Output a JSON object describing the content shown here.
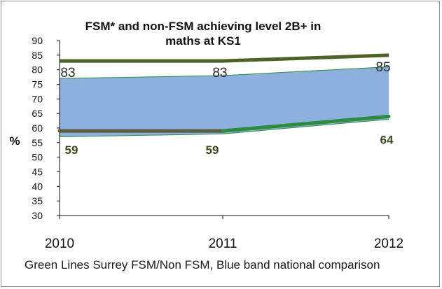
{
  "chart_data": {
    "type": "line",
    "title_lines": [
      "FSM* and non-FSM achieving level 2B+ in",
      "maths at KS1"
    ],
    "ylabel": "%",
    "xlabel": "",
    "categories": [
      "2010",
      "2011",
      "2012"
    ],
    "ylim": [
      30,
      90
    ],
    "yticks": [
      30,
      35,
      40,
      45,
      50,
      55,
      60,
      65,
      70,
      75,
      80,
      85,
      90
    ],
    "grid": false,
    "series": [
      {
        "values": [
          83,
          83,
          85
        ],
        "data_labels": [
          "83",
          "83",
          "85"
        ],
        "color": "#4f6228"
      },
      {
        "values": [
          59,
          59,
          64
        ],
        "data_labels": [
          "59",
          "59",
          "64"
        ],
        "segment_colors": [
          "#5c5c40",
          "#2e8b3e"
        ]
      }
    ],
    "national_band": {
      "upper": [
        77,
        78,
        81
      ],
      "lower": [
        57,
        58,
        63
      ],
      "fill": "#8db0de",
      "edge": "#2e8b3e"
    },
    "caption": "Green Lines Surrey FSM/Non FSM, Blue band national comparison"
  }
}
